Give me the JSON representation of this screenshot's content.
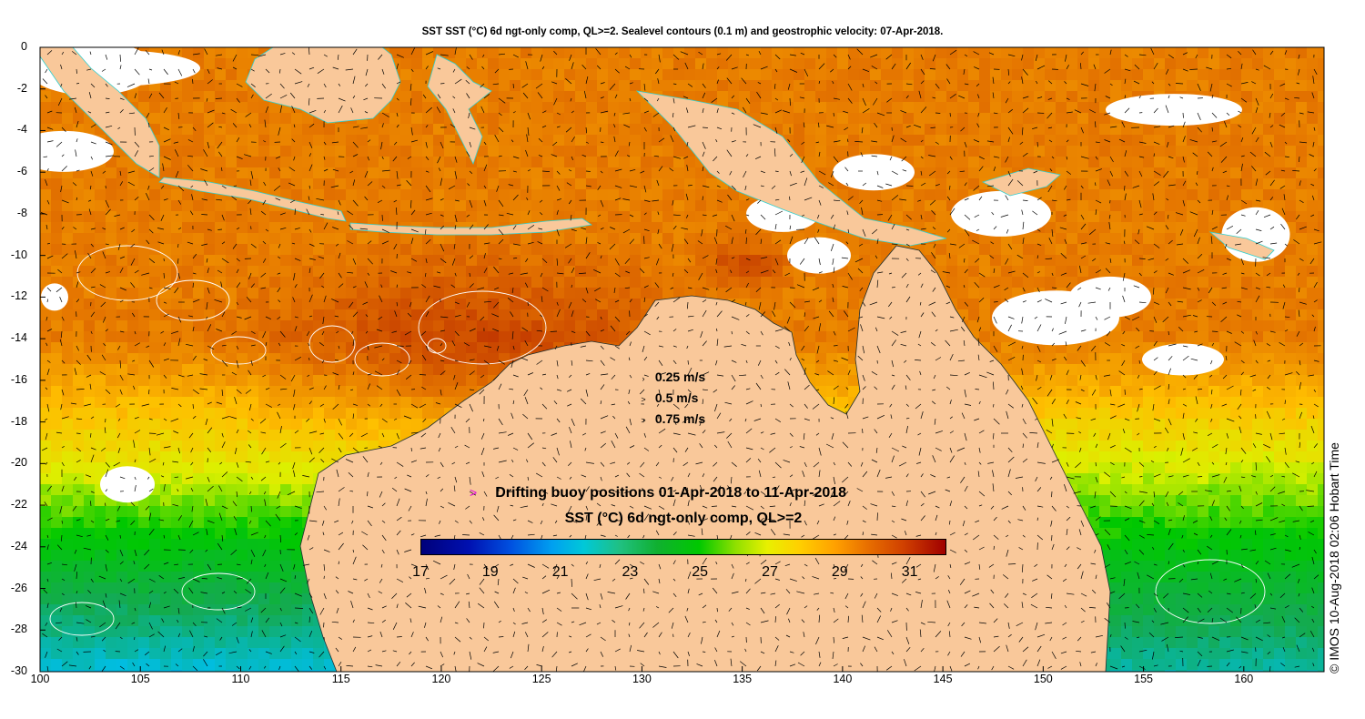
{
  "title": "SST SST (°C) 6d ngt-only comp, QL>=2. Sealevel contours (0.1 m) and geostrophic velocity: 07-Apr-2018.",
  "y_axis": {
    "tick_labels": [
      "0",
      "-2",
      "-4",
      "-6",
      "-8",
      "-10",
      "-12",
      "-14",
      "-16",
      "-18",
      "-20",
      "-22",
      "-24",
      "-26",
      "-28",
      "-30"
    ],
    "values": [
      0,
      -2,
      -4,
      -6,
      -8,
      -10,
      -12,
      -14,
      -16,
      -18,
      -20,
      -22,
      -24,
      -26,
      -28,
      -30
    ]
  },
  "x_axis": {
    "tick_labels": [
      "100",
      "105",
      "110",
      "115",
      "120",
      "125",
      "130",
      "135",
      "140",
      "145",
      "150",
      "155",
      "160"
    ],
    "values": [
      100,
      105,
      110,
      115,
      120,
      125,
      130,
      135,
      140,
      145,
      150,
      155,
      160
    ]
  },
  "extent": {
    "lon": [
      100,
      164
    ],
    "lat": [
      -30,
      0
    ]
  },
  "speed_legend": [
    {
      "label": "0.25 m/s",
      "speed": 0.25,
      "arrow": "›"
    },
    {
      "label": "0.5 m/s",
      "speed": 0.5,
      "arrow": ">"
    },
    {
      "label": "0.75 m/s",
      "speed": 0.75,
      "arrow": ">"
    }
  ],
  "buoy_legend": {
    "marker": ">",
    "marker_color": "#e000e0",
    "text": "Drifting buoy positions 01-Apr-2018 to 11-Apr-2018"
  },
  "colorbar": {
    "title": "SST (°C) 6d ngt-only comp, QL>=2",
    "range": [
      17,
      32
    ],
    "tick_labels": [
      "17",
      "19",
      "21",
      "23",
      "25",
      "27",
      "29",
      "31"
    ],
    "tick_values": [
      17,
      19,
      21,
      23,
      25,
      27,
      29,
      31
    ]
  },
  "credit": "© IMOS 10-Aug-2018 02:06 Hobart Time",
  "colors": {
    "land": "#f9c89a",
    "coast": "#30d0d0",
    "missing": "#ffffff",
    "buoy": "#e000e0"
  }
}
